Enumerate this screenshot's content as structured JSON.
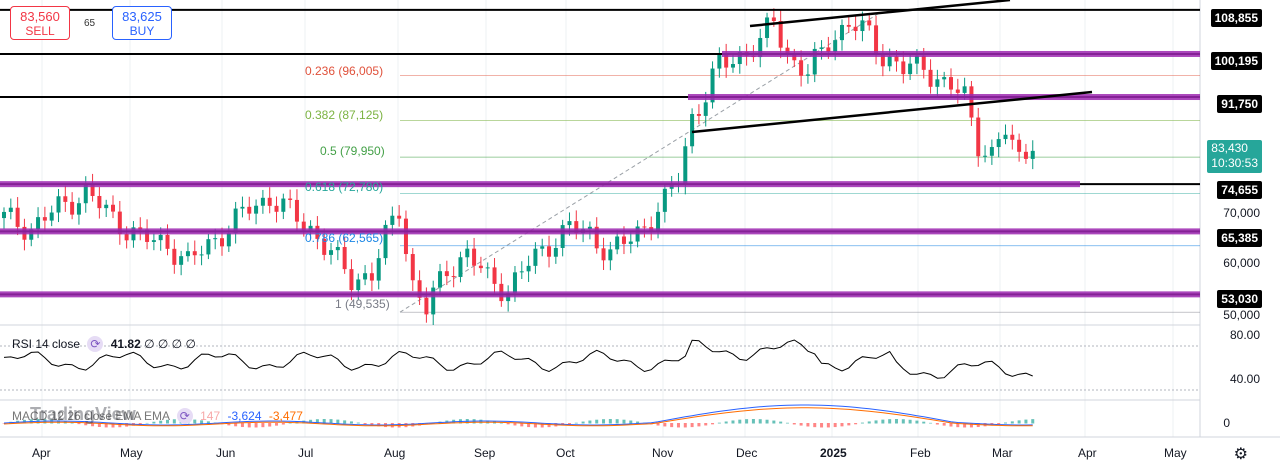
{
  "trade": {
    "sell_price": "83,560",
    "sell_label": "SELL",
    "buy_price": "83,625",
    "buy_label": "BUY",
    "spread": "65"
  },
  "chart_data": {
    "type": "candlestick",
    "price_axis": {
      "min": 48000,
      "max": 110000,
      "ticks": [
        "50,000",
        "60,000",
        "70,000",
        "80,000"
      ]
    },
    "x_months": [
      "Apr",
      "May",
      "Jun",
      "Jul",
      "Aug",
      "Sep",
      "Oct",
      "Nov",
      "Dec",
      "2025",
      "Feb",
      "Mar",
      "Apr",
      "May"
    ],
    "bold_month": "2025",
    "horizontal_levels": [
      {
        "label": "108,855",
        "value": 108855,
        "color": "#000000"
      },
      {
        "label": "100,195",
        "value": 100195,
        "color": "#000000"
      },
      {
        "label": "91,750",
        "value": 91750,
        "color": "#000000"
      },
      {
        "label": "74,655",
        "value": 74655,
        "color": "#000000"
      },
      {
        "label": "65,385",
        "value": 65385,
        "color": "#000000"
      },
      {
        "label": "53,030",
        "value": 53030,
        "color": "#000000"
      }
    ],
    "fibonacci": [
      {
        "label": "0.236 (96,005)",
        "value": 96005,
        "color": "#e0513b"
      },
      {
        "label": "0.382 (87,125)",
        "value": 87125,
        "color": "#7cb342"
      },
      {
        "label": "0.5 (79,950)",
        "value": 79950,
        "color": "#43a047"
      },
      {
        "label": "0.618 (72,780)",
        "value": 72780,
        "color": "#26a69a"
      },
      {
        "label": "0.786 (62,565)",
        "value": 62565,
        "color": "#1e88e5"
      },
      {
        "label": "1 (49,535)",
        "value": 49535,
        "color": "#787b86"
      }
    ],
    "current_price": "83,430",
    "countdown": "10:30:53",
    "series": [
      {
        "name": "",
        "points": [
          [
            0,
            68000
          ],
          [
            4,
            66000
          ],
          [
            8,
            70000
          ],
          [
            12,
            73000
          ],
          [
            16,
            68000
          ],
          [
            20,
            64000
          ],
          [
            24,
            63000
          ],
          [
            27,
            59000
          ],
          [
            30,
            63000
          ],
          [
            33,
            66000
          ],
          [
            36,
            70000
          ],
          [
            39,
            72000
          ],
          [
            42,
            69000
          ],
          [
            45,
            66000
          ],
          [
            48,
            61000
          ],
          [
            51,
            56000
          ],
          [
            54,
            57000
          ],
          [
            56,
            64000
          ],
          [
            58,
            70000
          ],
          [
            60,
            55000
          ],
          [
            62,
            50000
          ],
          [
            65,
            58000
          ],
          [
            68,
            61000
          ],
          [
            71,
            56000
          ],
          [
            74,
            54000
          ],
          [
            77,
            59000
          ],
          [
            80,
            63000
          ],
          [
            83,
            66000
          ],
          [
            86,
            65000
          ],
          [
            89,
            61000
          ],
          [
            92,
            64000
          ],
          [
            95,
            68000
          ],
          [
            97,
            71000
          ],
          [
            99,
            76000
          ],
          [
            101,
            88000
          ],
          [
            103,
            92000
          ],
          [
            105,
            98000
          ],
          [
            108,
            100000
          ],
          [
            111,
            102000
          ],
          [
            113,
            107000
          ],
          [
            115,
            100000
          ],
          [
            118,
            96000
          ],
          [
            121,
            103000
          ],
          [
            124,
            106000
          ],
          [
            127,
            104000
          ],
          [
            129,
            100000
          ],
          [
            132,
            97000
          ],
          [
            135,
            98000
          ],
          [
            138,
            94000
          ],
          [
            141,
            92000
          ],
          [
            143,
            83000
          ],
          [
            145,
            80000
          ],
          [
            147,
            85000
          ],
          [
            149,
            80000
          ],
          [
            151,
            83430
          ]
        ]
      }
    ]
  },
  "rsi": {
    "label": "RSI 14 close",
    "value": "41.82",
    "extra": "∅ ∅ ∅ ∅",
    "ticks": [
      "80.00",
      "40.00"
    ]
  },
  "macd": {
    "label": "MACD 12 26 close EMA EMA",
    "v1": "147",
    "v2": "-3,624",
    "v3": "-3,477",
    "tick": "0"
  },
  "watermark": "TradingView"
}
